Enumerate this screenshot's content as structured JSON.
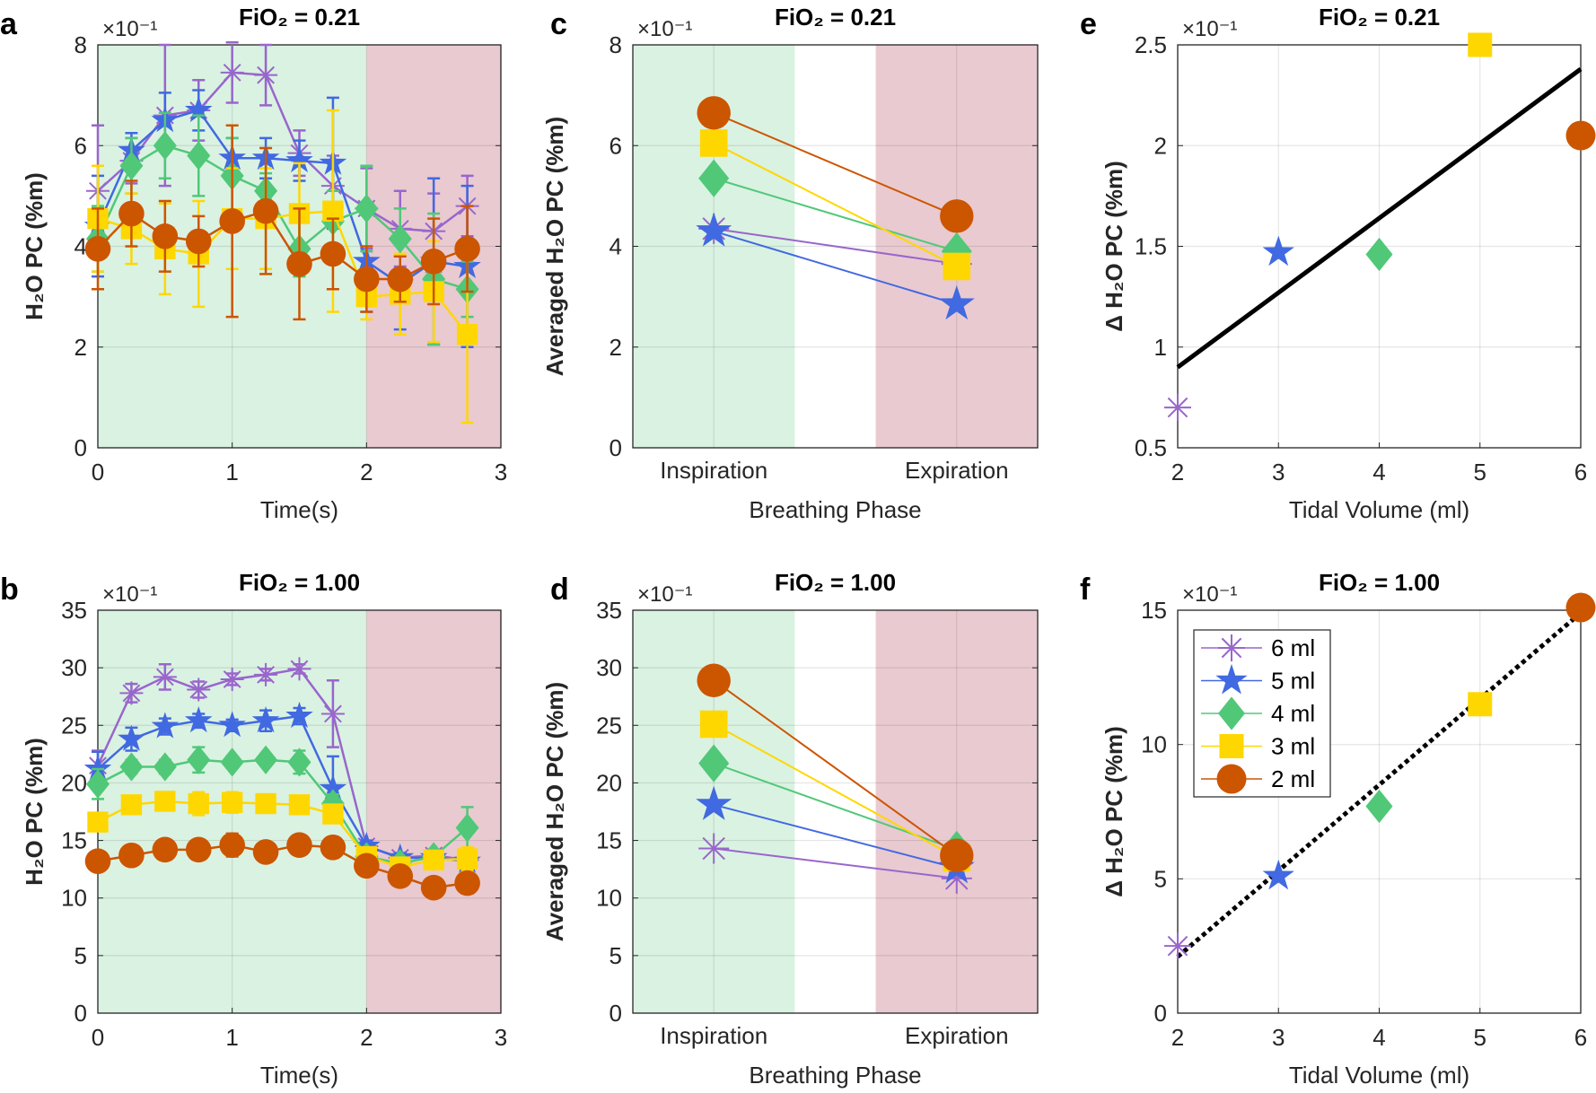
{
  "series_styles": [
    {
      "name": "6 ml",
      "color": "#9966CC",
      "marker": "asterisk"
    },
    {
      "name": "5 ml",
      "color": "#4169E1",
      "marker": "pentagram"
    },
    {
      "name": "4 ml",
      "color": "#50C878",
      "marker": "diamond"
    },
    {
      "name": "3 ml",
      "color": "#FFD700",
      "marker": "square"
    },
    {
      "name": "2 ml",
      "color": "#CC5500",
      "marker": "circle"
    }
  ],
  "chart_data": [
    {
      "panel": "a",
      "type": "line",
      "title": "FiO₂ = 0.21",
      "xlabel": "Time(s)",
      "ylabel": "H₂O PC (%m)",
      "exponent": "×10⁻¹",
      "xlim": [
        0,
        3
      ],
      "ylim": [
        0,
        8
      ],
      "xticks": [
        0,
        1,
        2,
        3
      ],
      "yticks": [
        0,
        2,
        4,
        6,
        8
      ],
      "grid": true,
      "shading": [
        {
          "from": 0,
          "to": 2,
          "color": "#DAF2E2"
        },
        {
          "from": 2,
          "to": 3,
          "color": "#E9CAD0"
        }
      ],
      "x": [
        0,
        0.25,
        0.5,
        0.75,
        1,
        1.25,
        1.5,
        1.75,
        2,
        2.25,
        2.5,
        2.75
      ],
      "series": [
        {
          "name": "6 ml",
          "values": [
            5.1,
            5.7,
            6.6,
            6.7,
            7.45,
            7.4,
            5.85,
            5.2,
            4.75,
            4.35,
            4.3,
            4.8
          ],
          "err": [
            1.3,
            0.45,
            1.4,
            0.6,
            0.6,
            0.6,
            0.45,
            0.6,
            0.8,
            0.75,
            0.75,
            0.6
          ]
        },
        {
          "name": "5 ml",
          "values": [
            4.4,
            5.9,
            6.5,
            6.7,
            5.75,
            5.75,
            5.7,
            5.65,
            3.7,
            3.25,
            3.7,
            3.6
          ],
          "err": [
            1.0,
            0.35,
            0.55,
            0.4,
            0.4,
            0.4,
            0.4,
            1.3,
            1.0,
            0.9,
            1.65,
            1.6
          ]
        },
        {
          "name": "4 ml",
          "values": [
            4.15,
            5.6,
            6.0,
            5.8,
            5.4,
            5.1,
            3.95,
            4.5,
            4.75,
            4.15,
            3.35,
            3.15
          ],
          "err": [
            0.65,
            0.55,
            0.65,
            0.8,
            0.75,
            0.35,
            0.55,
            0.6,
            0.85,
            0.6,
            1.3,
            0.55
          ]
        },
        {
          "name": "3 ml",
          "values": [
            4.55,
            4.35,
            3.95,
            3.85,
            4.55,
            4.55,
            4.65,
            4.7,
            3.0,
            3.05,
            3.1,
            2.25
          ],
          "err": [
            1.05,
            0.7,
            0.9,
            1.05,
            1.0,
            1.0,
            1.0,
            2.0,
            0.45,
            0.8,
            1.0,
            1.75
          ]
        },
        {
          "name": "2 ml",
          "values": [
            3.95,
            4.65,
            4.2,
            4.1,
            4.5,
            4.7,
            3.65,
            3.85,
            3.35,
            3.35,
            3.7,
            3.95
          ],
          "err": [
            0.8,
            0.65,
            0.7,
            0.5,
            1.9,
            1.25,
            1.1,
            0.7,
            0.65,
            0.45,
            0.85,
            0.85
          ]
        }
      ]
    },
    {
      "panel": "b",
      "type": "line",
      "title": "FiO₂ = 1.00",
      "xlabel": "Time(s)",
      "ylabel": "H₂O PC (%m)",
      "exponent": "×10⁻¹",
      "xlim": [
        0,
        3
      ],
      "ylim": [
        0,
        35
      ],
      "xticks": [
        0,
        1,
        2,
        3
      ],
      "yticks": [
        0,
        5,
        10,
        15,
        20,
        25,
        30,
        35
      ],
      "grid": true,
      "shading": [
        {
          "from": 0,
          "to": 2,
          "color": "#DAF2E2"
        },
        {
          "from": 2,
          "to": 3,
          "color": "#E9CAD0"
        }
      ],
      "x": [
        0,
        0.25,
        0.5,
        0.75,
        1,
        1.25,
        1.5,
        1.75,
        2,
        2.25,
        2.5,
        2.75
      ],
      "series": [
        {
          "name": "6 ml",
          "values": [
            21.5,
            27.8,
            29.2,
            28.1,
            29.0,
            29.4,
            29.9,
            26.0,
            14.5,
            13.5,
            13.7,
            13.3
          ],
          "err": [
            1.3,
            0.8,
            1.1,
            0.7,
            0.5,
            0.5,
            0.4,
            2.9,
            0.4,
            0.4,
            0.4,
            0.4
          ]
        },
        {
          "name": "5 ml",
          "values": [
            21.2,
            23.8,
            24.9,
            25.4,
            25.0,
            25.4,
            25.8,
            19.5,
            14.5,
            13.5,
            13.5,
            13.2
          ],
          "err": [
            1.5,
            1.0,
            0.7,
            0.6,
            0.5,
            0.9,
            0.7,
            2.8,
            0.5,
            0.4,
            0.4,
            0.4
          ]
        },
        {
          "name": "4 ml",
          "values": [
            19.9,
            21.4,
            21.4,
            22.0,
            21.8,
            22.0,
            21.8,
            18.2,
            13.6,
            13.0,
            13.6,
            16.1
          ],
          "err": [
            1.3,
            0.6,
            0.6,
            1.1,
            0.5,
            0.5,
            1.0,
            0.8,
            0.4,
            0.5,
            0.6,
            1.8
          ]
        },
        {
          "name": "3 ml",
          "values": [
            16.6,
            18.1,
            18.4,
            18.2,
            18.3,
            18.2,
            18.1,
            17.3,
            13.6,
            12.7,
            13.3,
            13.4
          ],
          "err": [
            0.5,
            0.7,
            0.5,
            1.0,
            0.9,
            0.6,
            0.5,
            0.7,
            0.4,
            0.4,
            0.4,
            1.0
          ]
        },
        {
          "name": "2 ml",
          "values": [
            13.2,
            13.7,
            14.2,
            14.2,
            14.6,
            14.0,
            14.6,
            14.4,
            12.8,
            11.9,
            10.9,
            11.3
          ],
          "err": [
            0.5,
            0.6,
            0.5,
            0.4,
            1.0,
            0.4,
            0.4,
            0.9,
            0.4,
            0.4,
            0.4,
            0.9
          ]
        }
      ]
    },
    {
      "panel": "c",
      "type": "line",
      "title": "FiO₂ = 0.21",
      "xlabel": "Breathing Phase",
      "ylabel": "Averaged H₂O PC (%m)",
      "exponent": "×10⁻¹",
      "categories": [
        "Inspiration",
        "Expiration"
      ],
      "ylim": [
        0,
        8
      ],
      "yticks": [
        0,
        2,
        4,
        6,
        8
      ],
      "grid": true,
      "series": [
        {
          "name": "6 ml",
          "values": [
            4.35,
            3.65
          ]
        },
        {
          "name": "5 ml",
          "values": [
            4.3,
            2.85
          ]
        },
        {
          "name": "4 ml",
          "values": [
            5.35,
            3.9
          ]
        },
        {
          "name": "3 ml",
          "values": [
            6.05,
            3.6
          ]
        },
        {
          "name": "2 ml",
          "values": [
            6.65,
            4.6
          ]
        }
      ]
    },
    {
      "panel": "d",
      "type": "line",
      "title": "FiO₂ = 1.00",
      "xlabel": "Breathing Phase",
      "ylabel": "Averaged H₂O PC (%m)",
      "exponent": "×10⁻¹",
      "categories": [
        "Inspiration",
        "Expiration"
      ],
      "ylim": [
        0,
        35
      ],
      "yticks": [
        0,
        5,
        10,
        15,
        20,
        25,
        30,
        35
      ],
      "grid": true,
      "series": [
        {
          "name": "6 ml",
          "values": [
            14.3,
            11.7
          ]
        },
        {
          "name": "5 ml",
          "values": [
            18.1,
            12.6
          ]
        },
        {
          "name": "4 ml",
          "values": [
            21.7,
            14.2
          ]
        },
        {
          "name": "3 ml",
          "values": [
            25.1,
            13.5
          ]
        },
        {
          "name": "2 ml",
          "values": [
            28.9,
            13.7
          ]
        }
      ]
    },
    {
      "panel": "e",
      "type": "scatter",
      "title": "FiO₂ = 0.21",
      "xlabel": "Tidal Volume (ml)",
      "ylabel": "Δ H₂O PC (%m)",
      "exponent": "×10⁻¹",
      "xlim": [
        2,
        6
      ],
      "ylim": [
        0.5,
        2.5
      ],
      "xticks": [
        2,
        3,
        4,
        5,
        6
      ],
      "yticks": [
        0.5,
        1,
        1.5,
        2,
        2.5
      ],
      "ytick_labels": [
        "0.5",
        "1",
        "1.5",
        "2",
        "2.5"
      ],
      "grid": true,
      "points": [
        {
          "name": "6 ml",
          "x": 2,
          "y": 0.7
        },
        {
          "name": "5 ml",
          "x": 3,
          "y": 1.47
        },
        {
          "name": "4 ml",
          "x": 4,
          "y": 1.46
        },
        {
          "name": "3 ml",
          "x": 5,
          "y": 2.5
        },
        {
          "name": "2 ml",
          "x": 6,
          "y": 2.05
        }
      ],
      "fit": {
        "style": "solid",
        "x": [
          2,
          6
        ],
        "y": [
          0.9,
          2.38
        ]
      }
    },
    {
      "panel": "f",
      "type": "scatter",
      "title": "FiO₂ = 1.00",
      "xlabel": "Tidal Volume (ml)",
      "ylabel": "Δ H₂O PC (%m)",
      "exponent": "×10⁻¹",
      "xlim": [
        2,
        6
      ],
      "ylim": [
        0,
        15
      ],
      "xticks": [
        2,
        3,
        4,
        5,
        6
      ],
      "yticks": [
        0,
        5,
        10,
        15
      ],
      "grid": true,
      "points": [
        {
          "name": "6 ml",
          "x": 2,
          "y": 2.5
        },
        {
          "name": "5 ml",
          "x": 3,
          "y": 5.1
        },
        {
          "name": "4 ml",
          "x": 4,
          "y": 7.7
        },
        {
          "name": "3 ml",
          "x": 5,
          "y": 11.5
        },
        {
          "name": "2 ml",
          "x": 6,
          "y": 15.1
        }
      ],
      "fit": {
        "style": "dotted",
        "x": [
          2,
          6
        ],
        "y": [
          2.1,
          14.9
        ]
      },
      "legend": {
        "placement": "top-left",
        "entries": [
          "6 ml",
          "5 ml",
          "4 ml",
          "3 ml",
          "2 ml"
        ]
      }
    }
  ]
}
